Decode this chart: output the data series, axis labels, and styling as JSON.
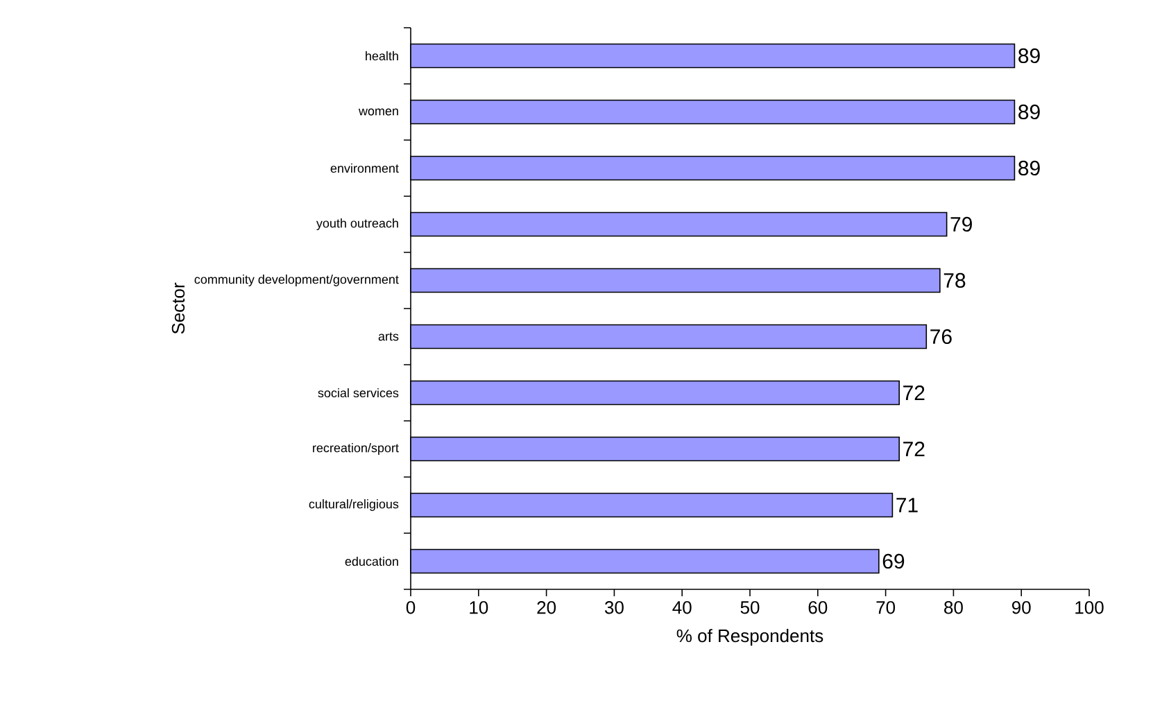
{
  "chart_data": {
    "type": "bar",
    "orientation": "horizontal",
    "xlabel": "% of Respondents",
    "ylabel": "Sector",
    "categories": [
      "health",
      "women",
      "environment",
      "youth outreach",
      "community development/government",
      "arts",
      "social services",
      "recreation/sport",
      "cultural/religious",
      "education"
    ],
    "values": [
      89,
      89,
      89,
      79,
      78,
      76,
      72,
      72,
      71,
      69
    ],
    "color": "#9999ff",
    "xlim": [
      0,
      100
    ],
    "xticks": [
      0,
      10,
      20,
      30,
      40,
      50,
      60,
      70,
      80,
      90,
      100
    ],
    "data_labels": true,
    "grid": false
  }
}
